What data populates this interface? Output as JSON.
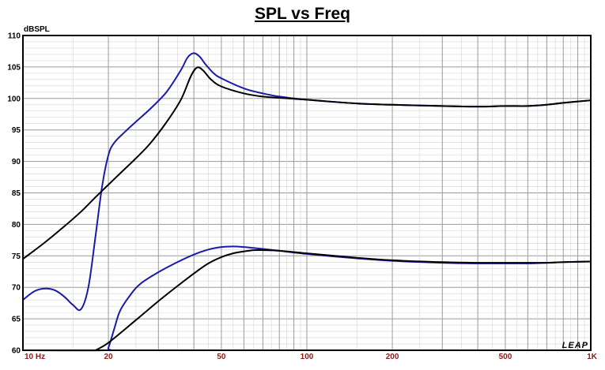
{
  "chart_data": {
    "type": "line",
    "title": "SPL vs Freq",
    "xlabel": "",
    "ylabel": "dBSPL",
    "x_scale": "log",
    "xlim": [
      10,
      1000
    ],
    "ylim": [
      60,
      110
    ],
    "grid": true,
    "x_tick_labels": [
      {
        "value": 10,
        "label": "10 Hz"
      },
      {
        "value": 20,
        "label": "20"
      },
      {
        "value": 50,
        "label": "50"
      },
      {
        "value": 100,
        "label": "100"
      },
      {
        "value": 200,
        "label": "200"
      },
      {
        "value": 500,
        "label": "500"
      },
      {
        "value": 1000,
        "label": "1K"
      }
    ],
    "y_ticks": [
      60,
      65,
      70,
      75,
      80,
      85,
      90,
      95,
      100,
      105,
      110
    ],
    "watermark": "LEAP",
    "series": [
      {
        "color": "#1a1aa8",
        "points": [
          [
            10,
            68
          ],
          [
            11,
            69.4
          ],
          [
            12,
            69.8
          ],
          [
            13,
            69.5
          ],
          [
            14,
            68.5
          ],
          [
            15,
            67.2
          ],
          [
            16,
            66.5
          ],
          [
            17,
            70
          ],
          [
            18,
            78
          ],
          [
            19,
            86
          ],
          [
            20,
            91
          ],
          [
            21,
            93
          ],
          [
            23,
            94.8
          ],
          [
            25,
            96.3
          ],
          [
            28,
            98.3
          ],
          [
            32,
            101
          ],
          [
            36,
            104.5
          ],
          [
            38,
            106.5
          ],
          [
            40,
            107.2
          ],
          [
            42,
            106.6
          ],
          [
            44,
            105.4
          ],
          [
            47,
            104
          ],
          [
            50,
            103.2
          ],
          [
            60,
            101.6
          ],
          [
            70,
            100.8
          ],
          [
            80,
            100.3
          ],
          [
            100,
            99.8
          ],
          [
            150,
            99.2
          ],
          [
            200,
            99
          ],
          [
            300,
            98.8
          ],
          [
            400,
            98.7
          ],
          [
            500,
            98.8
          ],
          [
            600,
            98.8
          ],
          [
            700,
            99
          ],
          [
            800,
            99.3
          ],
          [
            1000,
            99.7
          ]
        ]
      },
      {
        "color": "#000000",
        "points": [
          [
            10,
            74.5
          ],
          [
            12,
            77.2
          ],
          [
            14,
            79.7
          ],
          [
            16,
            82
          ],
          [
            18,
            84.3
          ],
          [
            20,
            86.3
          ],
          [
            22,
            88.1
          ],
          [
            25,
            90.5
          ],
          [
            28,
            92.8
          ],
          [
            32,
            96.2
          ],
          [
            36,
            99.8
          ],
          [
            39,
            103.5
          ],
          [
            41,
            104.9
          ],
          [
            43,
            104.5
          ],
          [
            46,
            103
          ],
          [
            50,
            101.9
          ],
          [
            60,
            100.8
          ],
          [
            70,
            100.3
          ],
          [
            80,
            100.1
          ],
          [
            100,
            99.8
          ],
          [
            150,
            99.2
          ],
          [
            200,
            99
          ],
          [
            300,
            98.8
          ],
          [
            400,
            98.7
          ],
          [
            500,
            98.8
          ],
          [
            600,
            98.8
          ],
          [
            700,
            99
          ],
          [
            800,
            99.3
          ],
          [
            1000,
            99.7
          ]
        ]
      },
      {
        "color": "#1a1aa8",
        "points": [
          [
            10,
            60
          ],
          [
            19.5,
            60
          ],
          [
            20,
            60.4
          ],
          [
            21,
            63.5
          ],
          [
            22,
            66.3
          ],
          [
            24,
            68.9
          ],
          [
            26,
            70.6
          ],
          [
            30,
            72.4
          ],
          [
            35,
            74
          ],
          [
            40,
            75.2
          ],
          [
            45,
            76
          ],
          [
            50,
            76.4
          ],
          [
            55,
            76.5
          ],
          [
            60,
            76.4
          ],
          [
            70,
            76.1
          ],
          [
            80,
            75.8
          ],
          [
            100,
            75.3
          ],
          [
            150,
            74.6
          ],
          [
            200,
            74.2
          ],
          [
            300,
            73.9
          ],
          [
            400,
            73.8
          ],
          [
            500,
            73.8
          ],
          [
            600,
            73.8
          ],
          [
            700,
            73.9
          ],
          [
            800,
            74
          ],
          [
            1000,
            74.1
          ]
        ]
      },
      {
        "color": "#000000",
        "points": [
          [
            18,
            60
          ],
          [
            20,
            61.2
          ],
          [
            25,
            64.8
          ],
          [
            30,
            67.8
          ],
          [
            35,
            70.2
          ],
          [
            40,
            72.2
          ],
          [
            45,
            73.8
          ],
          [
            50,
            74.8
          ],
          [
            55,
            75.4
          ],
          [
            60,
            75.7
          ],
          [
            65,
            75.9
          ],
          [
            70,
            75.9
          ],
          [
            80,
            75.8
          ],
          [
            100,
            75.4
          ],
          [
            150,
            74.7
          ],
          [
            200,
            74.3
          ],
          [
            300,
            74
          ],
          [
            400,
            73.9
          ],
          [
            500,
            73.9
          ],
          [
            600,
            73.9
          ],
          [
            700,
            73.9
          ],
          [
            800,
            74
          ],
          [
            1000,
            74.1
          ]
        ]
      }
    ]
  }
}
